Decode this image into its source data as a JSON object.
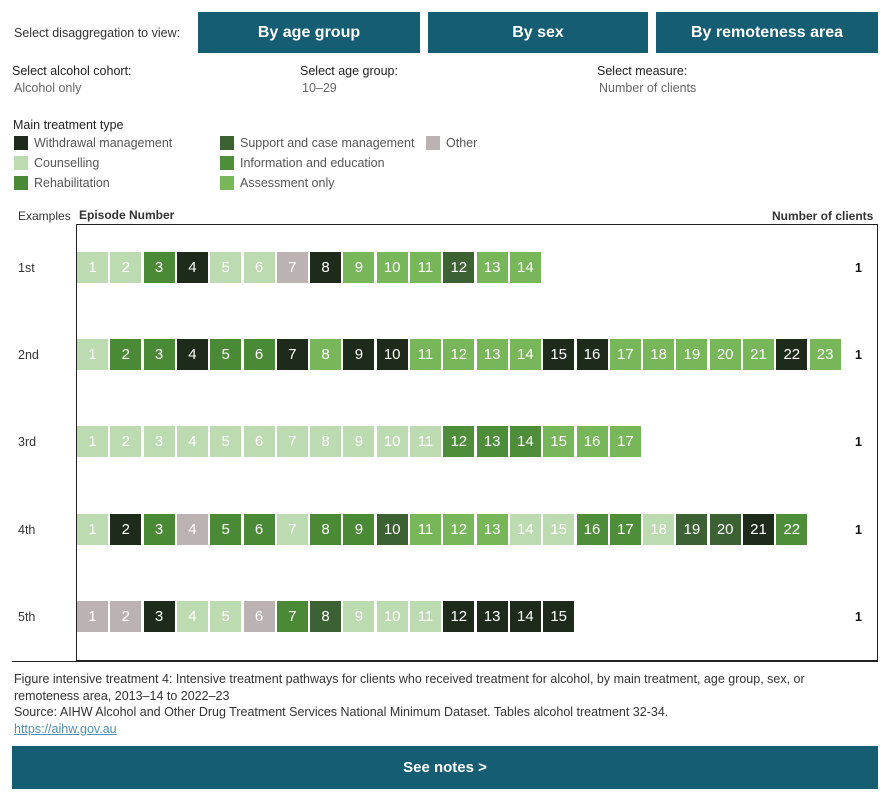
{
  "header": {
    "disaggregation_label": "Select disaggregation to view:",
    "tabs": [
      {
        "label": "By age group"
      },
      {
        "label": "By sex"
      },
      {
        "label": "By remoteness area"
      }
    ]
  },
  "filters": {
    "cohort": {
      "label": "Select alcohol cohort:",
      "value": "Alcohol only"
    },
    "age": {
      "label": "Select age group:",
      "value": "10–29"
    },
    "measure": {
      "label": "Select measure:",
      "value": "Number of clients"
    }
  },
  "legend": {
    "title": "Main treatment type",
    "items": [
      {
        "label": "Withdrawal management",
        "color": "#1e2b1b"
      },
      {
        "label": "Counselling",
        "color": "#bddbb0"
      },
      {
        "label": "Rehabilitation",
        "color": "#4a8a36"
      },
      {
        "label": "Support and case management",
        "color": "#3c6233"
      },
      {
        "label": "Information and education",
        "color": "#4e8e3a"
      },
      {
        "label": "Assessment only",
        "color": "#78b65a"
      },
      {
        "label": "Other",
        "color": "#bab3b2"
      }
    ]
  },
  "chart_headers": {
    "examples": "Examples",
    "episode": "Episode Number",
    "clients": "Number of clients"
  },
  "colors": {
    "W": "#1e2b1b",
    "C": "#bddbb0",
    "R": "#4a8a36",
    "S": "#3c6233",
    "I": "#4e8e3a",
    "A": "#78b65a",
    "O": "#bab3b2"
  },
  "chart_data": {
    "type": "table",
    "rows": [
      {
        "label": "1st",
        "clients": "1",
        "episodes": [
          "C",
          "C",
          "R",
          "W",
          "C",
          "C",
          "O",
          "W",
          "A",
          "A",
          "A",
          "S",
          "A",
          "A"
        ]
      },
      {
        "label": "2nd",
        "clients": "1",
        "episodes": [
          "C",
          "R",
          "R",
          "W",
          "R",
          "R",
          "W",
          "A",
          "W",
          "W",
          "A",
          "A",
          "A",
          "A",
          "W",
          "W",
          "A",
          "A",
          "A",
          "A",
          "A",
          "W",
          "A"
        ]
      },
      {
        "label": "3rd",
        "clients": "1",
        "episodes": [
          "C",
          "C",
          "C",
          "C",
          "C",
          "C",
          "C",
          "C",
          "C",
          "C",
          "C",
          "I",
          "I",
          "I",
          "A",
          "A",
          "A"
        ]
      },
      {
        "label": "4th",
        "clients": "1",
        "episodes": [
          "C",
          "W",
          "R",
          "O",
          "R",
          "R",
          "C",
          "R",
          "R",
          "S",
          "A",
          "A",
          "A",
          "C",
          "C",
          "I",
          "I",
          "C",
          "S",
          "S",
          "W",
          "I"
        ]
      },
      {
        "label": "5th",
        "clients": "1",
        "episodes": [
          "O",
          "O",
          "W",
          "C",
          "C",
          "O",
          "R",
          "S",
          "C",
          "C",
          "C",
          "W",
          "W",
          "W",
          "W"
        ]
      }
    ]
  },
  "footer": {
    "caption": "Figure intensive treatment 4: Intensive treatment pathways for clients who received treatment for alcohol, by main treatment, age group, sex, or remoteness area, 2013–14 to 2022–23",
    "source": "Source: AIHW Alcohol and Other Drug Treatment Services National Minimum Dataset. Tables alcohol treatment 32-34.",
    "link": "https://aihw.gov.au",
    "notes_button": "See notes >"
  }
}
